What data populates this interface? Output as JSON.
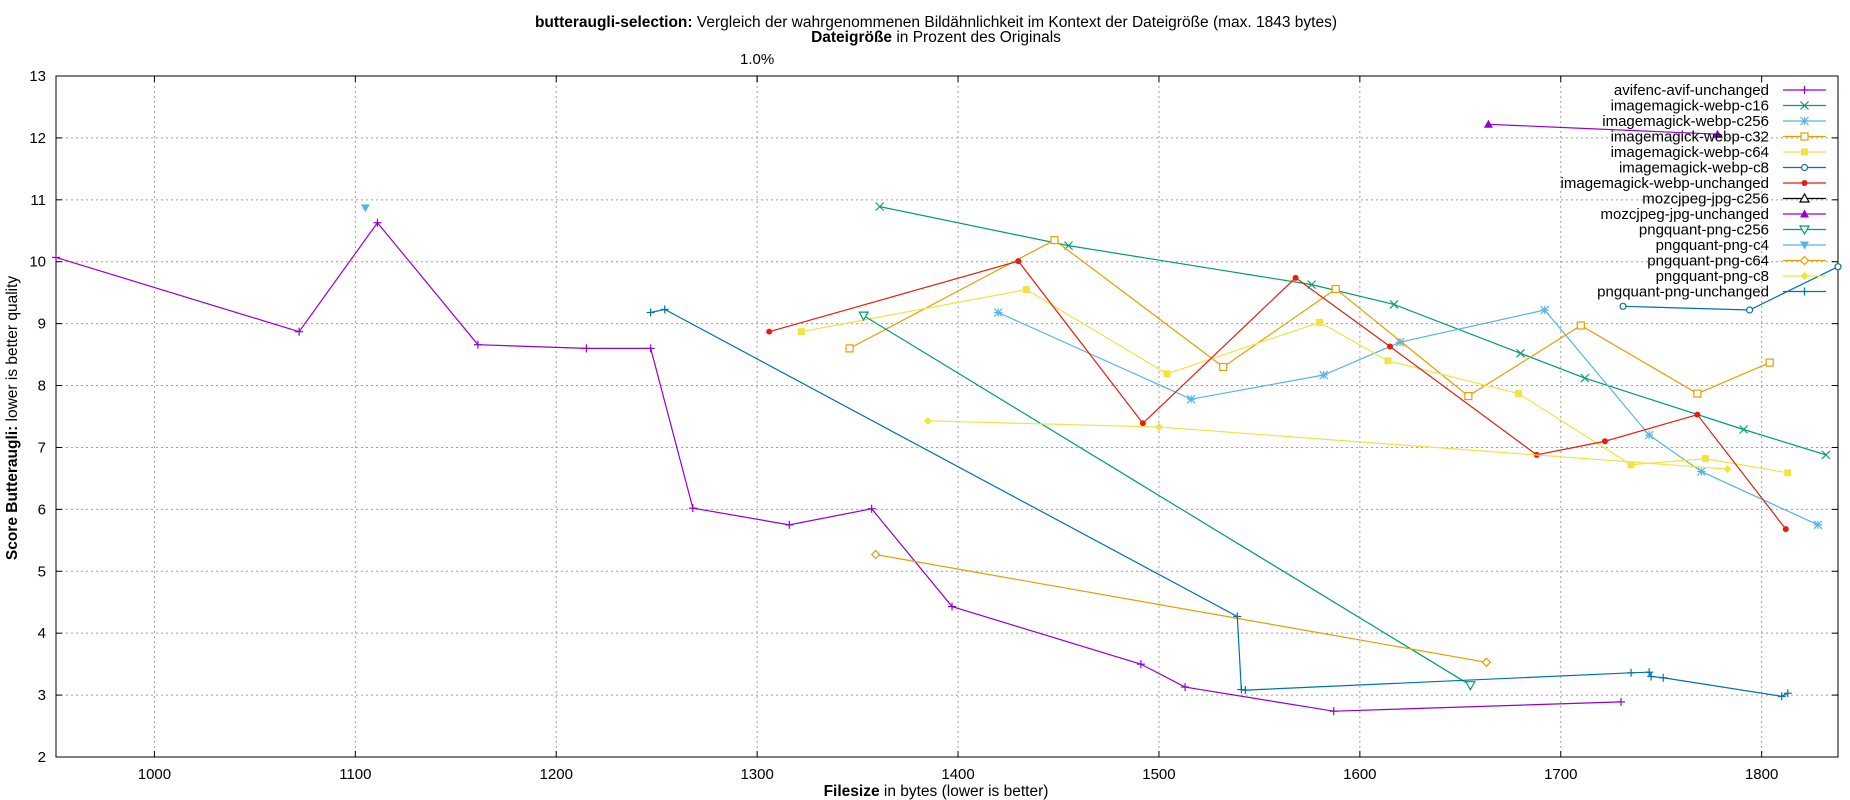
{
  "chart_data": {
    "type": "line",
    "title_bold": "butteraugli-selection:",
    "title_rest": " Vergleich der wahrgenommenen Bildähnlichkeit im Kontext der Dateigröße (max. 1843 bytes)",
    "subtitle_bold": "Dateigröße",
    "subtitle_rest": " in Prozent des Originals",
    "top_axis_ticks": [
      {
        "x": 1300,
        "label": "1.0%"
      }
    ],
    "xlabel_bold": "Filesize",
    "xlabel_rest": " in bytes (lower is better)",
    "ylabel_bold": "Score Butteraugli:",
    "ylabel_rest": " lower is better quality",
    "xlim": [
      951,
      1838
    ],
    "ylim": [
      2,
      13
    ],
    "x_ticks": [
      1000,
      1100,
      1200,
      1300,
      1400,
      1500,
      1600,
      1700,
      1800
    ],
    "y_ticks": [
      2,
      3,
      4,
      5,
      6,
      7,
      8,
      9,
      10,
      11,
      12,
      13
    ],
    "grid": true,
    "legend_position": "top-right",
    "series": [
      {
        "name": "avifenc-avif-unchanged",
        "color": "#9400d3",
        "marker": "plus",
        "points": [
          [
            951,
            10.07
          ],
          [
            1072,
            8.87
          ],
          [
            1111,
            10.63
          ],
          [
            1161,
            8.66
          ],
          [
            1215,
            8.6
          ],
          [
            1247,
            8.6
          ],
          [
            1268,
            6.02
          ],
          [
            1316,
            5.75
          ],
          [
            1357,
            6.01
          ],
          [
            1397,
            4.43
          ],
          [
            1491,
            3.5
          ],
          [
            1513,
            3.13
          ],
          [
            1587,
            2.74
          ],
          [
            1730,
            2.89
          ]
        ]
      },
      {
        "name": "imagemagick-webp-c16",
        "color": "#009e73",
        "marker": "x",
        "points": [
          [
            1361,
            10.89
          ],
          [
            1455,
            10.26
          ],
          [
            1576,
            9.63
          ],
          [
            1617,
            9.31
          ],
          [
            1680,
            8.52
          ],
          [
            1712,
            8.12
          ],
          [
            1791,
            7.29
          ],
          [
            1832,
            6.88
          ]
        ]
      },
      {
        "name": "imagemagick-webp-c256",
        "color": "#56b4e9",
        "marker": "star",
        "points": [
          [
            1420,
            9.18
          ],
          [
            1516,
            7.78
          ],
          [
            1582,
            8.17
          ],
          [
            1620,
            8.7
          ],
          [
            1692,
            9.22
          ],
          [
            1744,
            7.2
          ],
          [
            1770,
            6.61
          ],
          [
            1828,
            5.75
          ]
        ]
      },
      {
        "name": "imagemagick-webp-c32",
        "color": "#e69f00",
        "marker": "square-open",
        "points": [
          [
            1346,
            8.6
          ],
          [
            1448,
            10.35
          ],
          [
            1532,
            8.3
          ],
          [
            1588,
            9.56
          ],
          [
            1654,
            7.83
          ],
          [
            1710,
            8.97
          ],
          [
            1768,
            7.87
          ],
          [
            1804,
            8.37
          ]
        ]
      },
      {
        "name": "imagemagick-webp-c64",
        "color": "#f0e442",
        "marker": "square",
        "points": [
          [
            1322,
            8.87
          ],
          [
            1434,
            9.55
          ],
          [
            1504,
            8.19
          ],
          [
            1580,
            9.02
          ],
          [
            1614,
            8.4
          ],
          [
            1679,
            7.87
          ],
          [
            1735,
            6.72
          ],
          [
            1772,
            6.82
          ],
          [
            1813,
            6.59
          ]
        ]
      },
      {
        "name": "imagemagick-webp-c8",
        "color": "#0072b2",
        "marker": "circle-open",
        "points": [
          [
            1731,
            9.28
          ],
          [
            1794,
            9.22
          ],
          [
            1838,
            9.92
          ]
        ]
      },
      {
        "name": "imagemagick-webp-unchanged",
        "color": "#e51e10",
        "marker": "circle",
        "points": [
          [
            1306,
            8.87
          ],
          [
            1430,
            10.01
          ],
          [
            1492,
            7.39
          ],
          [
            1568,
            9.74
          ],
          [
            1615,
            8.63
          ],
          [
            1688,
            6.88
          ],
          [
            1722,
            7.1
          ],
          [
            1768,
            7.53
          ],
          [
            1812,
            5.68
          ]
        ]
      },
      {
        "name": "mozcjpeg-jpg-c256",
        "color": "#000000",
        "marker": "triangle-open",
        "points": []
      },
      {
        "name": "mozcjpeg-jpg-unchanged",
        "color": "#9400d3",
        "marker": "triangle",
        "points": [
          [
            1664,
            12.22
          ],
          [
            1778,
            12.06
          ]
        ]
      },
      {
        "name": "pngquant-png-c256",
        "color": "#009e73",
        "marker": "triangle-down-open",
        "points": [
          [
            1353,
            9.13
          ],
          [
            1655,
            3.16
          ]
        ]
      },
      {
        "name": "pngquant-png-c4",
        "color": "#56b4e9",
        "marker": "triangle-down",
        "points": [
          [
            1105,
            10.87
          ]
        ]
      },
      {
        "name": "pngquant-png-c64",
        "color": "#e69f00",
        "marker": "diamond-open",
        "points": [
          [
            1359,
            5.27
          ],
          [
            1663,
            3.53
          ]
        ]
      },
      {
        "name": "pngquant-png-c8",
        "color": "#f0e442",
        "marker": "diamond",
        "points": [
          [
            1385,
            7.43
          ],
          [
            1500,
            7.33
          ],
          [
            1783,
            6.65
          ]
        ]
      },
      {
        "name": "pngquant-png-unchanged",
        "color": "#0072b2",
        "marker": "plus",
        "points": [
          [
            1247,
            9.18
          ],
          [
            1254,
            9.23
          ],
          [
            1539,
            4.27
          ],
          [
            1541,
            3.09
          ],
          [
            1543,
            3.08
          ],
          [
            1735,
            3.36
          ],
          [
            1744,
            3.37
          ],
          [
            1745,
            3.3
          ],
          [
            1751,
            3.28
          ],
          [
            1810,
            2.98
          ],
          [
            1813,
            3.03
          ]
        ]
      }
    ]
  }
}
